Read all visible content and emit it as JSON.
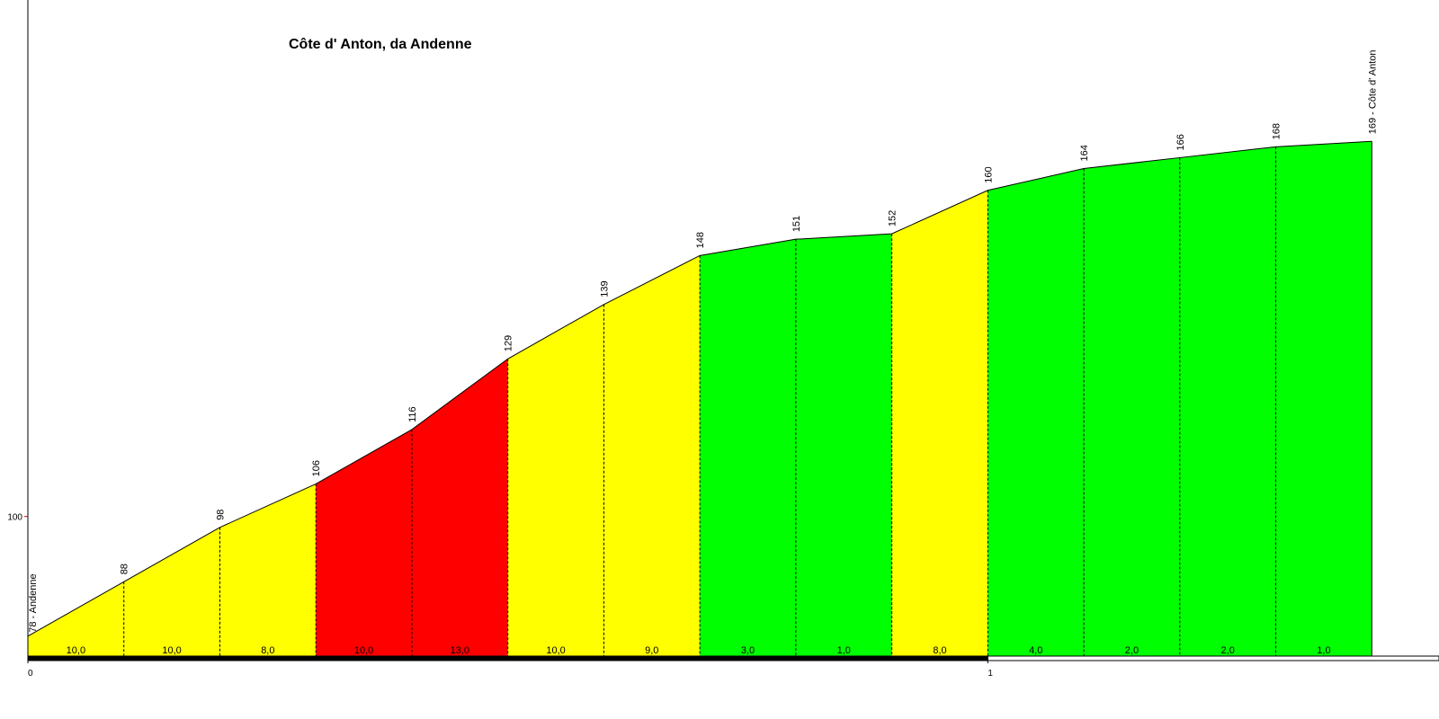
{
  "chart_data": {
    "type": "profile",
    "title": "Côte d' Anton, da Andenne",
    "x": [
      0,
      0.1,
      0.2,
      0.3,
      0.4,
      0.5,
      0.6,
      0.7,
      0.8,
      0.9,
      1.0,
      1.1,
      1.2,
      1.3,
      1.4
    ],
    "values": [
      78,
      88,
      98,
      106,
      116,
      129,
      139,
      148,
      151,
      152,
      160,
      164,
      166,
      168,
      169
    ],
    "value_labels": [
      "78 - Andenne",
      "88",
      "98",
      "106",
      "116",
      "129",
      "139",
      "148",
      "151",
      "152",
      "160",
      "164",
      "166",
      "168",
      "169 - Côte d' Anton"
    ],
    "gradients": [
      10,
      10,
      8,
      10,
      13,
      10,
      9,
      3,
      1,
      8,
      4,
      2,
      2,
      1
    ],
    "gradient_labels": [
      "10,0",
      "10,0",
      "8,0",
      "10,0",
      "13,0",
      "10,0",
      "9,0",
      "3,0",
      "1,0",
      "8,0",
      "4,0",
      "2,0",
      "2,0",
      "1,0"
    ],
    "segment_colors": [
      "#ffff00",
      "#ffff00",
      "#ffff00",
      "#ff0000",
      "#ff0000",
      "#ffff00",
      "#ffff00",
      "#00ff00",
      "#00ff00",
      "#ffff00",
      "#00ff00",
      "#00ff00",
      "#00ff00",
      "#00ff00"
    ],
    "xlim": [
      0,
      1.47
    ],
    "ylim": [
      74,
      195
    ],
    "xticks": [
      0,
      1
    ],
    "yticks": [
      100
    ]
  }
}
